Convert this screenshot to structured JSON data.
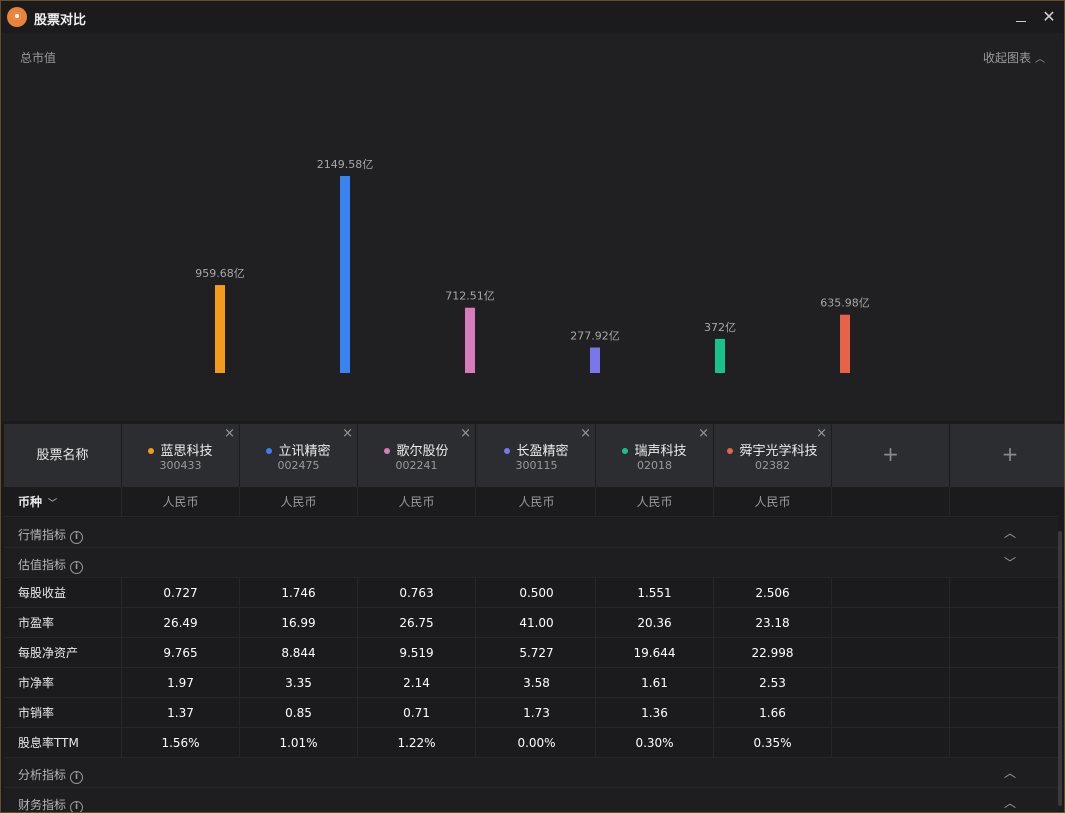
{
  "window": {
    "title": "股票对比",
    "colors": {
      "accent": "#e9833a",
      "border": "#6b4a2a"
    }
  },
  "chart": {
    "title": "总市值",
    "collapse_label": "收起图表"
  },
  "chart_data": {
    "type": "bar",
    "categories": [
      "蓝思科技",
      "立讯精密",
      "歌尔股份",
      "长盈精密",
      "瑞声科技",
      "舜宇光学科技"
    ],
    "values": [
      959.68,
      2149.58,
      712.51,
      277.92,
      372,
      635.98
    ],
    "value_labels": [
      "959.68亿",
      "2149.58亿",
      "712.51亿",
      "277.92亿",
      "372亿",
      "635.98亿"
    ],
    "unit": "亿",
    "colors": [
      "#f39c1a",
      "#3a82f0",
      "#d87bbd",
      "#7878ea",
      "#17c38a",
      "#e8624a"
    ],
    "title": "总市值",
    "grid": false,
    "ylim": [
      0,
      2149.58
    ]
  },
  "table": {
    "name_header": "股票名称",
    "stocks": [
      {
        "name": "蓝思科技",
        "code": "300433",
        "color": "#f39c1a",
        "remove": "×"
      },
      {
        "name": "立讯精密",
        "code": "002475",
        "color": "#3a82f0",
        "remove": "×"
      },
      {
        "name": "歌尔股份",
        "code": "002241",
        "color": "#d87bbd",
        "remove": "×"
      },
      {
        "name": "长盈精密",
        "code": "300115",
        "color": "#7878ea",
        "remove": "×"
      },
      {
        "name": "瑞声科技",
        "code": "02018",
        "color": "#17c38a",
        "remove": "×"
      },
      {
        "name": "舜宇光学科技",
        "code": "02382",
        "color": "#e8624a",
        "remove": "×"
      }
    ],
    "add_label": "+",
    "currency": {
      "label": "币种",
      "values": [
        "人民币",
        "人民币",
        "人民币",
        "人民币",
        "人民币",
        "人民币"
      ]
    },
    "sections": {
      "market": {
        "label": "行情指标",
        "info": "i",
        "chevron": "⌃"
      },
      "valuation": {
        "label": "估值指标",
        "info": "i",
        "chevron": "⌄"
      },
      "analysis": {
        "label": "分析指标",
        "info": "i",
        "chevron": "⌃"
      },
      "finance": {
        "label": "财务指标",
        "info": "i",
        "chevron": "⌃"
      }
    },
    "rows": [
      {
        "label": "每股收益",
        "values": [
          "0.727",
          "1.746",
          "0.763",
          "0.500",
          "1.551",
          "2.506"
        ]
      },
      {
        "label": "市盈率",
        "values": [
          "26.49",
          "16.99",
          "26.75",
          "41.00",
          "20.36",
          "23.18"
        ]
      },
      {
        "label": "每股净资产",
        "values": [
          "9.765",
          "8.844",
          "9.519",
          "5.727",
          "19.644",
          "22.998"
        ]
      },
      {
        "label": "市净率",
        "values": [
          "1.97",
          "3.35",
          "2.14",
          "3.58",
          "1.61",
          "2.53"
        ]
      },
      {
        "label": "市销率",
        "values": [
          "1.37",
          "0.85",
          "0.71",
          "1.73",
          "1.36",
          "1.66"
        ]
      },
      {
        "label": "股息率TTM",
        "values": [
          "1.56%",
          "1.01%",
          "1.22%",
          "0.00%",
          "0.30%",
          "0.35%"
        ]
      }
    ]
  }
}
